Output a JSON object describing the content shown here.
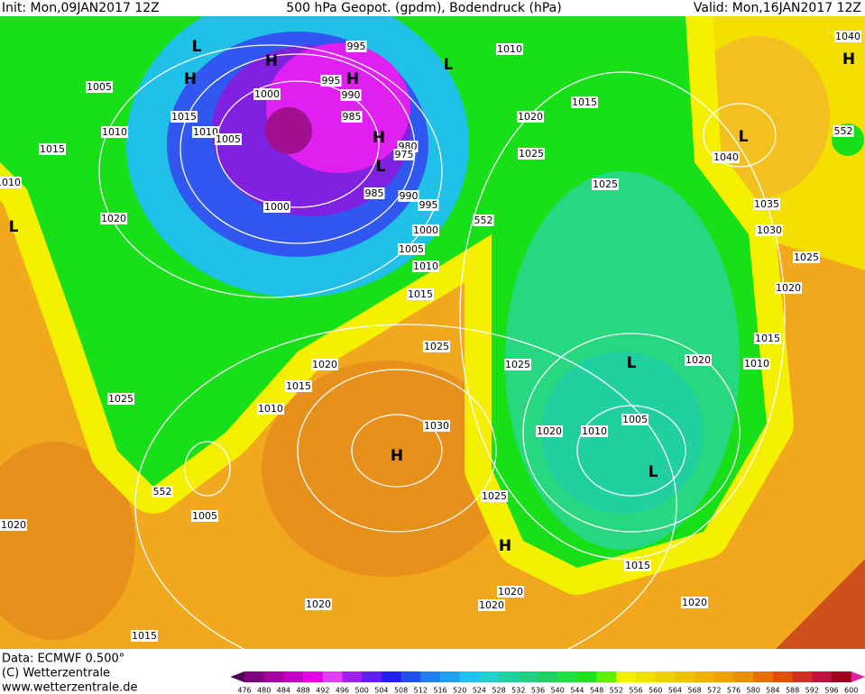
{
  "header": {
    "init": "Init: Mon,09JAN2017 12Z",
    "title": "500 hPa Geopot. (gpdm), Bodendruck (hPa)",
    "valid": "Valid: Mon,16JAN2017 12Z"
  },
  "footer": {
    "data": "Data: ECMWF  0.500°",
    "copyright": "(C) Wetterzentrale",
    "url": "www.wetterzentrale.de"
  },
  "colorbar": {
    "ticks": [
      476,
      480,
      484,
      488,
      492,
      496,
      500,
      504,
      508,
      512,
      516,
      520,
      524,
      528,
      532,
      536,
      540,
      544,
      548,
      552,
      556,
      560,
      564,
      568,
      572,
      576,
      580,
      584,
      588,
      592,
      596,
      600
    ]
  },
  "map": {
    "isobar_labels": [
      "995",
      "1010",
      "1005",
      "995",
      "990",
      "1000",
      "1015",
      "1010",
      "1010",
      "1005",
      "985",
      "1020",
      "1015",
      "1015",
      "980",
      "975",
      "1025",
      "1040",
      "1025",
      "985",
      "990",
      "995",
      "1000",
      "1035",
      "1020",
      "552",
      "1000",
      "1030",
      "1005",
      "1025",
      "1010",
      "1015",
      "1020",
      "1015",
      "1025",
      "1020",
      "1025",
      "1020",
      "1010",
      "1015",
      "1025",
      "1010",
      "1005",
      "1020",
      "1010",
      "1030",
      "552",
      "1025",
      "1005",
      "1020",
      "1015",
      "1020",
      "1020",
      "1020",
      "1020",
      "1015",
      "1040",
      "1010",
      "552"
    ],
    "centers": [
      "L",
      "H",
      "H",
      "L",
      "H",
      "H",
      "L",
      "L",
      "H",
      "L",
      "L",
      "L",
      "H",
      "H"
    ]
  }
}
